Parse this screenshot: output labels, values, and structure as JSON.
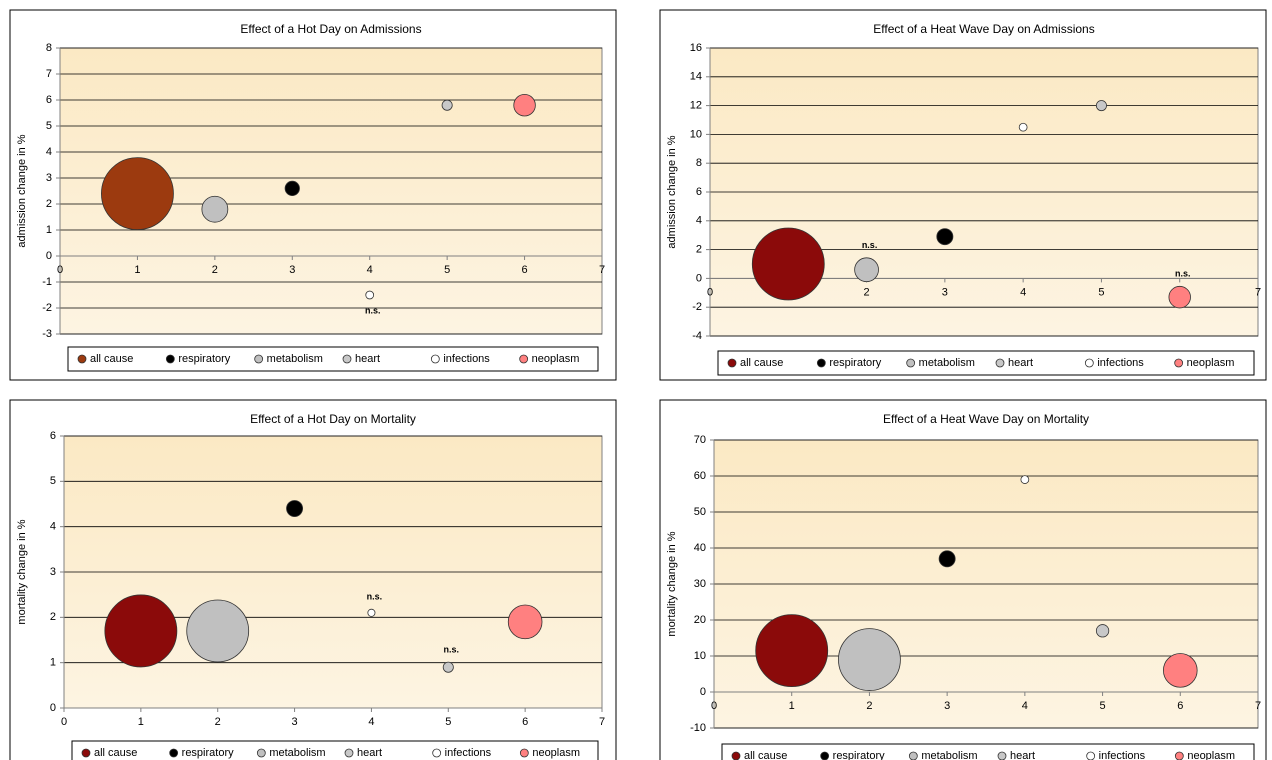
{
  "chart_data": [
    {
      "type": "bubble",
      "title": "Effect of a Hot Day on Admissions",
      "y_label": "admission change in %",
      "xlim": [
        0,
        7
      ],
      "xticks": [
        0,
        1,
        2,
        3,
        4,
        5,
        6,
        7
      ],
      "ylim": [
        -3,
        8
      ],
      "yticks": [
        -3,
        -2,
        -1,
        0,
        1,
        2,
        3,
        4,
        5,
        6,
        7,
        8
      ],
      "grid": true,
      "legend": "bottom",
      "series": [
        {
          "name": "all cause",
          "color": "#9c3a0f",
          "x": [
            1
          ],
          "values": [
            2.4
          ],
          "sizes": [
            100
          ]
        },
        {
          "name": "respiratory",
          "color": "#000000",
          "x": [
            3
          ],
          "values": [
            2.6
          ],
          "sizes": [
            4
          ]
        },
        {
          "name": "metabolism",
          "color": "#c0c0c0",
          "x": [
            2
          ],
          "values": [
            1.8
          ],
          "sizes": [
            13
          ]
        },
        {
          "name": "heart",
          "color": "#c8c8c8",
          "x": [
            5
          ],
          "values": [
            5.8
          ],
          "sizes": [
            2
          ]
        },
        {
          "name": "infections",
          "color": "#ffffff",
          "x": [
            4
          ],
          "values": [
            -1.5
          ],
          "sizes": [
            1.2
          ]
        },
        {
          "name": "neoplasm",
          "color": "#ff8080",
          "x": [
            6
          ],
          "values": [
            5.8
          ],
          "sizes": [
            9
          ]
        }
      ],
      "annotations": [
        {
          "text": "n.s.",
          "series": 4,
          "position": "below"
        }
      ]
    },
    {
      "type": "bubble",
      "title": "Effect of a Heat Wave Day on Admissions",
      "y_label": "admission change in %",
      "xlim": [
        0,
        7
      ],
      "xticks": [
        0,
        1,
        2,
        3,
        4,
        5,
        6,
        7
      ],
      "ylim": [
        -4,
        16
      ],
      "yticks": [
        -4,
        -2,
        0,
        2,
        4,
        6,
        8,
        10,
        12,
        14,
        16
      ],
      "grid": true,
      "legend": "bottom",
      "series": [
        {
          "name": "all cause",
          "color": "#8b0a0a",
          "x": [
            1
          ],
          "values": [
            1
          ],
          "sizes": [
            100
          ]
        },
        {
          "name": "respiratory",
          "color": "#000000",
          "x": [
            3
          ],
          "values": [
            2.9
          ],
          "sizes": [
            5
          ]
        },
        {
          "name": "metabolism",
          "color": "#c0c0c0",
          "x": [
            2
          ],
          "values": [
            0.6
          ],
          "sizes": [
            11
          ]
        },
        {
          "name": "heart",
          "color": "#c8c8c8",
          "x": [
            5
          ],
          "values": [
            12
          ],
          "sizes": [
            2
          ]
        },
        {
          "name": "infections",
          "color": "#ffffff",
          "x": [
            4
          ],
          "values": [
            10.5
          ],
          "sizes": [
            1.2
          ]
        },
        {
          "name": "neoplasm",
          "color": "#ff8080",
          "x": [
            6
          ],
          "values": [
            -1.3
          ],
          "sizes": [
            9
          ]
        }
      ],
      "annotations": [
        {
          "text": "n.s.",
          "series": 2,
          "position": "above"
        },
        {
          "text": "n.s.",
          "series": 5,
          "position": "above"
        }
      ]
    },
    {
      "type": "bubble",
      "title": "Effect of a Hot Day on Mortality",
      "y_label": "mortality change in %",
      "xlim": [
        0,
        7
      ],
      "xticks": [
        0,
        1,
        2,
        3,
        4,
        5,
        6,
        7
      ],
      "ylim": [
        0,
        6
      ],
      "yticks": [
        0,
        1,
        2,
        3,
        4,
        5,
        6
      ],
      "grid": true,
      "legend": "bottom",
      "series": [
        {
          "name": "all cause",
          "color": "#8b0a0a",
          "x": [
            1
          ],
          "values": [
            1.7
          ],
          "sizes": [
            100
          ]
        },
        {
          "name": "respiratory",
          "color": "#000000",
          "x": [
            3
          ],
          "values": [
            4.4
          ],
          "sizes": [
            5
          ]
        },
        {
          "name": "metabolism",
          "color": "#c0c0c0",
          "x": [
            2
          ],
          "values": [
            1.7
          ],
          "sizes": [
            74
          ]
        },
        {
          "name": "heart",
          "color": "#c8c8c8",
          "x": [
            5
          ],
          "values": [
            0.9
          ],
          "sizes": [
            2
          ]
        },
        {
          "name": "infections",
          "color": "#ffffff",
          "x": [
            4
          ],
          "values": [
            2.1
          ],
          "sizes": [
            1
          ]
        },
        {
          "name": "neoplasm",
          "color": "#ff8080",
          "x": [
            6
          ],
          "values": [
            1.9
          ],
          "sizes": [
            22
          ]
        }
      ],
      "annotations": [
        {
          "text": "n.s.",
          "series": 4,
          "position": "above"
        },
        {
          "text": "n.s.",
          "series": 3,
          "position": "above"
        }
      ]
    },
    {
      "type": "bubble",
      "title": "Effect of a Heat Wave Day on Mortality",
      "y_label": "mortality change in %",
      "xlim": [
        0,
        7
      ],
      "xticks": [
        0,
        1,
        2,
        3,
        4,
        5,
        6,
        7
      ],
      "ylim": [
        -10,
        70
      ],
      "yticks": [
        -10,
        0,
        10,
        20,
        30,
        40,
        50,
        60,
        70
      ],
      "grid": true,
      "legend": "bottom",
      "series": [
        {
          "name": "all cause",
          "color": "#8b0a0a",
          "x": [
            1
          ],
          "values": [
            11.5
          ],
          "sizes": [
            100
          ]
        },
        {
          "name": "respiratory",
          "color": "#000000",
          "x": [
            3
          ],
          "values": [
            37
          ],
          "sizes": [
            5
          ]
        },
        {
          "name": "metabolism",
          "color": "#c0c0c0",
          "x": [
            2
          ],
          "values": [
            9
          ],
          "sizes": [
            74
          ]
        },
        {
          "name": "heart",
          "color": "#c8c8c8",
          "x": [
            5
          ],
          "values": [
            17
          ],
          "sizes": [
            3
          ]
        },
        {
          "name": "infections",
          "color": "#ffffff",
          "x": [
            4
          ],
          "values": [
            59
          ],
          "sizes": [
            1.2
          ]
        },
        {
          "name": "neoplasm",
          "color": "#ff8080",
          "x": [
            6
          ],
          "values": [
            6
          ],
          "sizes": [
            22
          ]
        }
      ],
      "annotations": []
    }
  ]
}
